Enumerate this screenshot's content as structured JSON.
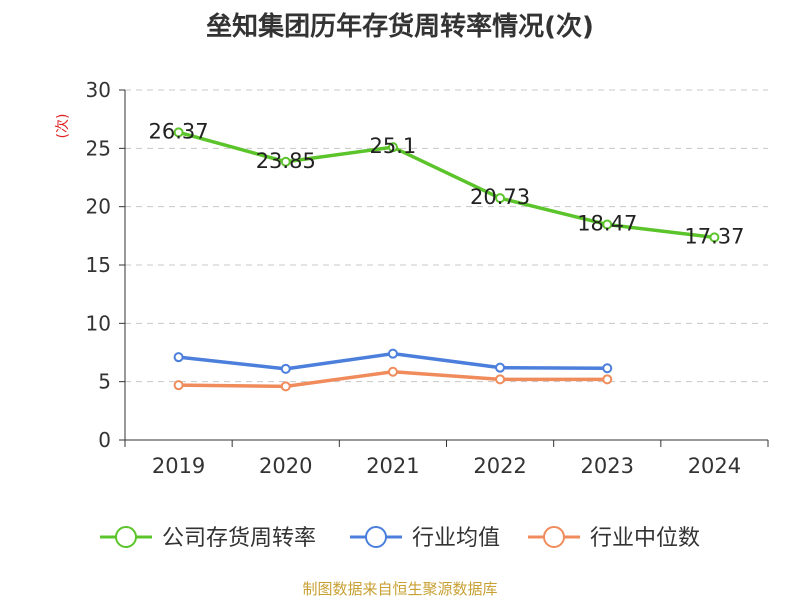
{
  "chart_data": {
    "type": "line",
    "title": "垒知集团历年存货周转率情况(次)",
    "ylabel": "(次)",
    "xlabel": "",
    "categories": [
      "2019",
      "2020",
      "2021",
      "2022",
      "2023",
      "2024"
    ],
    "ylim": [
      0,
      30
    ],
    "yticks": [
      0,
      5,
      10,
      15,
      20,
      25,
      30
    ],
    "grid": true,
    "legend_position": "bottom",
    "series": [
      {
        "name": "公司存货周转率",
        "color": "#5cc42b",
        "values": [
          26.37,
          23.85,
          25.1,
          20.73,
          18.47,
          17.37
        ],
        "data_labels": [
          "26.37",
          "23.85",
          "25.1",
          "20.73",
          "18.47",
          "17.37"
        ]
      },
      {
        "name": "行业均值",
        "color": "#4c7fdc",
        "values": [
          7.1,
          6.1,
          7.4,
          6.2,
          6.15,
          null
        ]
      },
      {
        "name": "行业中位数",
        "color": "#f08c5c",
        "values": [
          4.7,
          4.6,
          5.85,
          5.2,
          5.2,
          null
        ]
      }
    ]
  },
  "source": "制图数据来自恒生聚源数据库"
}
